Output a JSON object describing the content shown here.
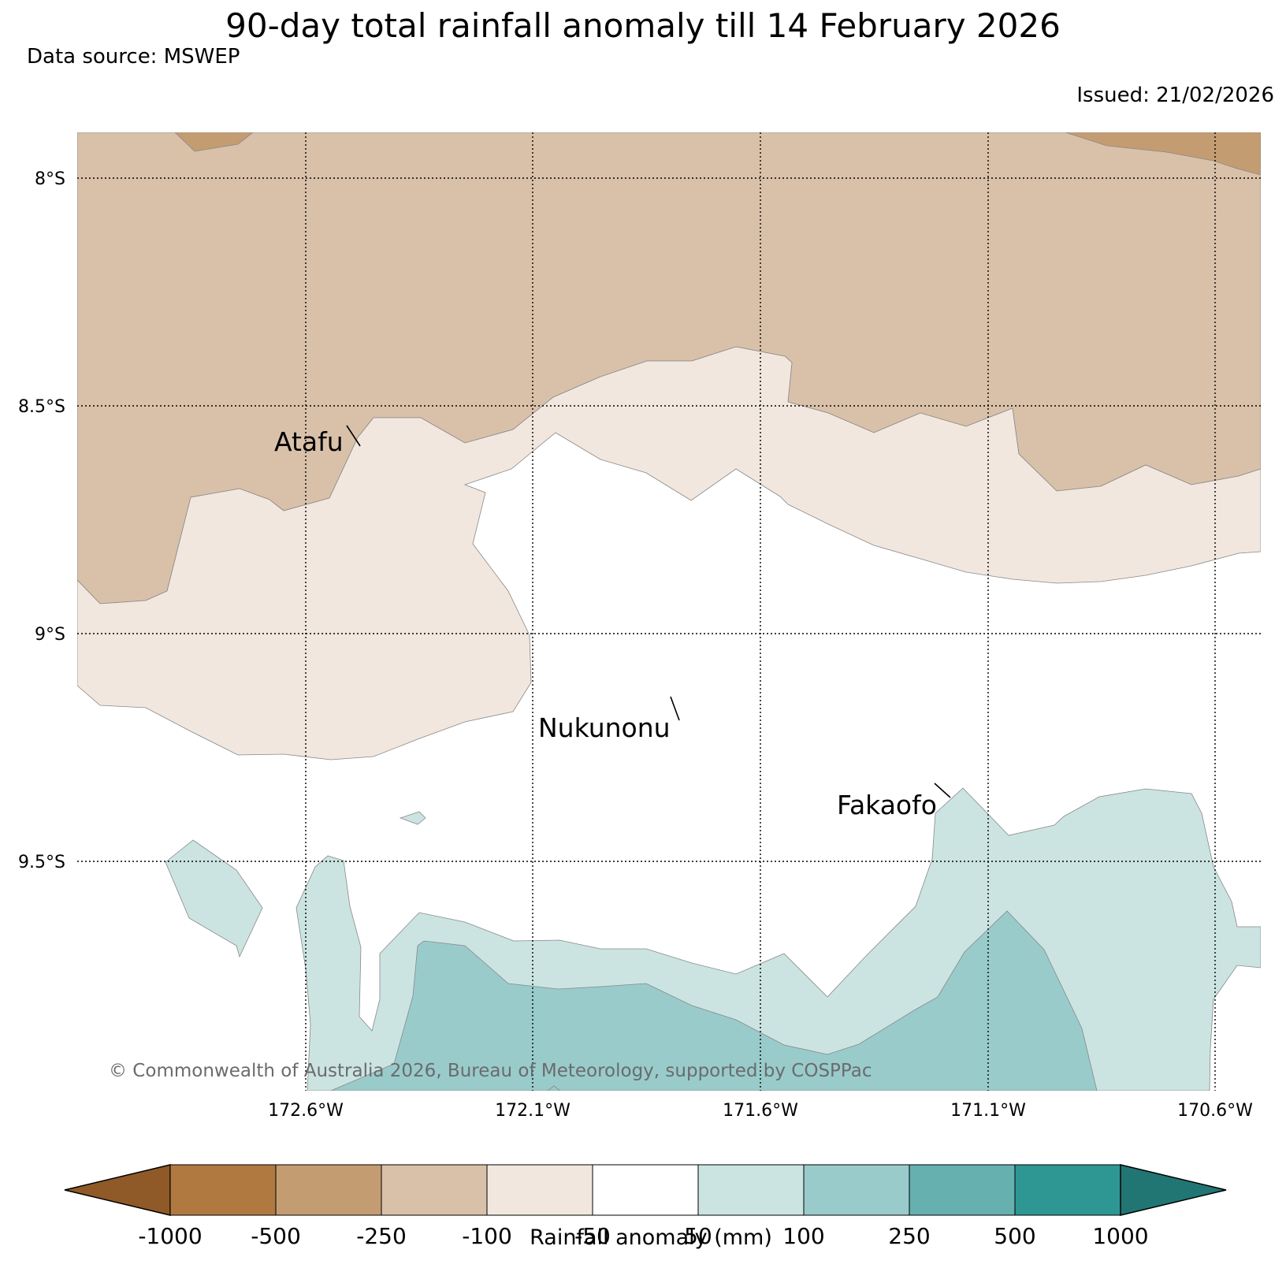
{
  "title": "90-day total rainfall anomaly till 14 February 2026",
  "data_source": "Data source: MSWEP",
  "issued": "Issued: 21/02/2026",
  "copyright": "© Commonwealth of Australia 2026, Bureau of Meteorology, supported by COSPPac",
  "map": {
    "lat_labels": [
      "8°S",
      "8.5°S",
      "9°S",
      "9.5°S"
    ],
    "lon_labels": [
      "172.6°W",
      "172.1°W",
      "171.6°W",
      "171.1°W",
      "170.6°W"
    ],
    "places": [
      {
        "name": "Atafu"
      },
      {
        "name": "Nukunonu"
      },
      {
        "name": "Fakaofo"
      }
    ],
    "colors": {
      "band_neg_250_500": "#c49c72",
      "band_neg_100_250": "#d9c1a9",
      "band_neg_50_100": "#f1e7de",
      "band_50_100": "#cbe4e2",
      "band_100_250": "#99cbcb",
      "grid": "#000000",
      "contour_line": "#888888"
    }
  },
  "colorbar": {
    "label": "Rainfall anomaly (mm)",
    "tick_labels": [
      "-1000",
      "-500",
      "-250",
      "-100",
      "-50",
      "50",
      "100",
      "250",
      "500",
      "1000"
    ],
    "colors": [
      "#8f5a27",
      "#b07940",
      "#c49c72",
      "#d9c1a9",
      "#f1e7de",
      "#ffffff",
      "#cbe4e2",
      "#99cbcb",
      "#66b0b0",
      "#2e9793",
      "#217673"
    ]
  }
}
